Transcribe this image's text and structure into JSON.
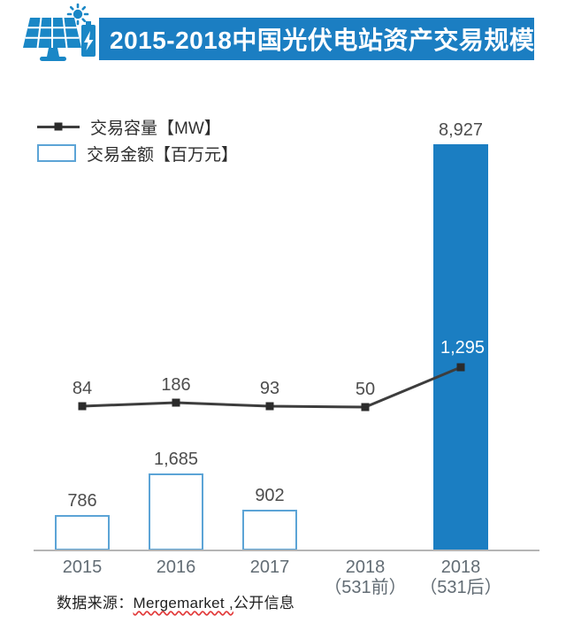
{
  "header": {
    "title": "2015-2018中国光伏电站资产交易规模",
    "banner_color": "#1b7ec2",
    "icon": "solar-panel-battery-icon"
  },
  "legend": [
    {
      "label": "交易容量【MW】",
      "type": "line"
    },
    {
      "label": "交易金额【百万元】",
      "type": "bar"
    }
  ],
  "chart_data": {
    "type": "combo",
    "title": "2015-2018中国光伏电站资产交易规模",
    "categories": [
      {
        "line1": "2015",
        "line2": ""
      },
      {
        "line1": "2016",
        "line2": ""
      },
      {
        "line1": "2017",
        "line2": ""
      },
      {
        "line1": "2018",
        "line2": "（531前）"
      },
      {
        "line1": "2018",
        "line2": "（531后）"
      }
    ],
    "series": [
      {
        "name": "交易容量【MW】",
        "type": "line",
        "values": [
          84,
          186,
          93,
          50,
          1295
        ],
        "labels": [
          "84",
          "186",
          "93",
          "50",
          "1,295"
        ],
        "color": "#3d3d3d",
        "marker": "square"
      },
      {
        "name": "交易金额【百万元】",
        "type": "bar",
        "values": [
          786,
          1685,
          902,
          null,
          8927
        ],
        "labels": [
          "786",
          "1,685",
          "902",
          null,
          "8,927"
        ],
        "styles": [
          "outline",
          "outline",
          "outline",
          "none",
          "fill"
        ],
        "outline_color": "#5ca4d6",
        "fill_color": "#1b7ec2"
      }
    ],
    "axes": {
      "x_visible": true,
      "y_visible": false,
      "grid": false
    },
    "legend_position": "top-left"
  },
  "source": {
    "prefix": "数据来源：",
    "name": "Mergemarket ,",
    "suffix": "公开信息"
  }
}
